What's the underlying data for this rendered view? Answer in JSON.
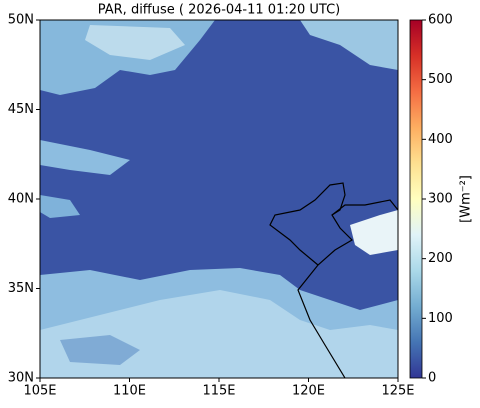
{
  "chart_data": {
    "type": "map",
    "title": "PAR, diffuse ( 2026-04-11 01:20 UTC)",
    "xlim": [
      105,
      125
    ],
    "ylim": [
      30,
      50
    ],
    "xticks": [
      {
        "value": 105,
        "label": "105E"
      },
      {
        "value": 110,
        "label": "110E"
      },
      {
        "value": 115,
        "label": "115E"
      },
      {
        "value": 120,
        "label": "120E"
      },
      {
        "value": 125,
        "label": "125E"
      }
    ],
    "yticks": [
      {
        "value": 30,
        "label": "30N"
      },
      {
        "value": 35,
        "label": "35N"
      },
      {
        "value": 40,
        "label": "40N"
      },
      {
        "value": 45,
        "label": "45N"
      },
      {
        "value": 50,
        "label": "50N"
      }
    ],
    "colorbar": {
      "label": "[Wm⁻²]",
      "colormap": "RdYlBu_r",
      "clim": [
        0,
        600
      ],
      "ticks": [
        0,
        100,
        200,
        300,
        400,
        500,
        600
      ]
    }
  }
}
